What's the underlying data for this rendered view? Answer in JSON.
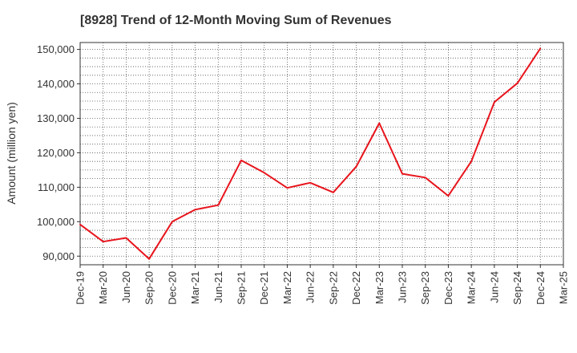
{
  "chart_data": {
    "type": "line",
    "title": "[8928]  Trend of 12-Month Moving Sum of Revenues",
    "ylabel": "Amount (million yen)",
    "xlabel": "",
    "ylim": [
      87500,
      152000
    ],
    "yticks": [
      90000,
      100000,
      110000,
      120000,
      130000,
      140000,
      150000
    ],
    "ytick_labels": [
      "90,000",
      "100,000",
      "110,000",
      "120,000",
      "130,000",
      "140,000",
      "150,000"
    ],
    "categories": [
      "Dec-19",
      "Mar-20",
      "Jun-20",
      "Sep-20",
      "Dec-20",
      "Mar-21",
      "Jun-21",
      "Sep-21",
      "Dec-21",
      "Mar-22",
      "Jun-22",
      "Sep-22",
      "Dec-22",
      "Mar-23",
      "Jun-23",
      "Sep-23",
      "Dec-23",
      "Mar-24",
      "Jun-24",
      "Sep-24",
      "Dec-24",
      "Mar-25"
    ],
    "grid": true,
    "series": [
      {
        "color": "#e8141c",
        "values": [
          99200,
          94200,
          95300,
          89200,
          100000,
          103500,
          104800,
          117800,
          114200,
          109800,
          111300,
          108500,
          116000,
          128600,
          113900,
          112800,
          107500,
          117500,
          134700,
          140200,
          150300,
          null
        ]
      }
    ]
  }
}
